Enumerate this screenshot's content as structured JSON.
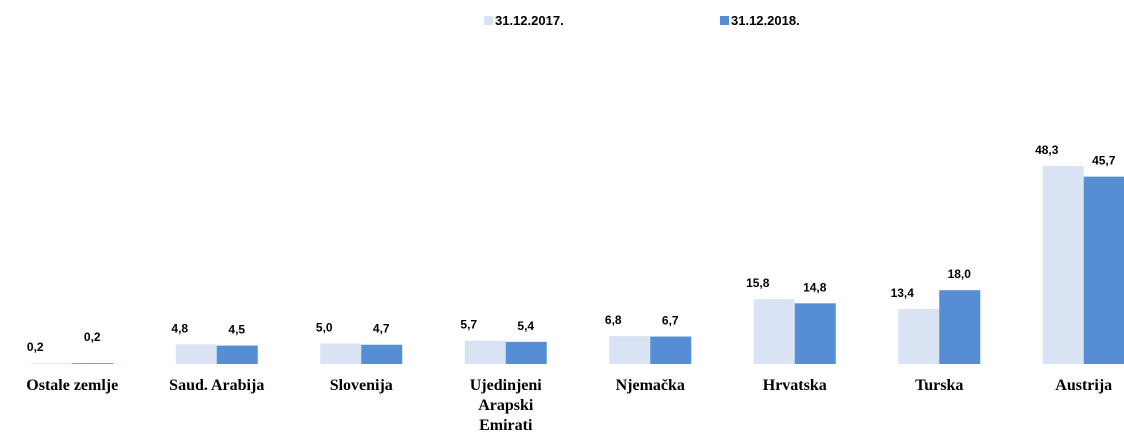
{
  "chart_data": {
    "type": "bar",
    "categories": [
      "Ostale zemlje",
      "Saud. Arabija",
      "Slovenija",
      "Ujedinjeni Arapski Emirati",
      "Njemačka",
      "Hrvatska",
      "Turska",
      "Austrija"
    ],
    "series": [
      {
        "name": "31.12.2017.",
        "color": "#dae3f3",
        "values": [
          0.2,
          4.8,
          5.0,
          5.7,
          6.8,
          15.8,
          13.4,
          48.3
        ],
        "value_labels": [
          "0,2",
          "4,8",
          "5,0",
          "5,7",
          "6,8",
          "15,8",
          "13,4",
          "48,3"
        ]
      },
      {
        "name": "31.12.2018.",
        "color": "#558ed5",
        "values": [
          0.2,
          4.5,
          4.7,
          5.4,
          6.7,
          14.8,
          18.0,
          45.7
        ],
        "value_labels": [
          "0,2",
          "4,5",
          "4,7",
          "5,4",
          "6,7",
          "14,8",
          "18,0",
          "45,7"
        ]
      }
    ],
    "legend": "top"
  }
}
